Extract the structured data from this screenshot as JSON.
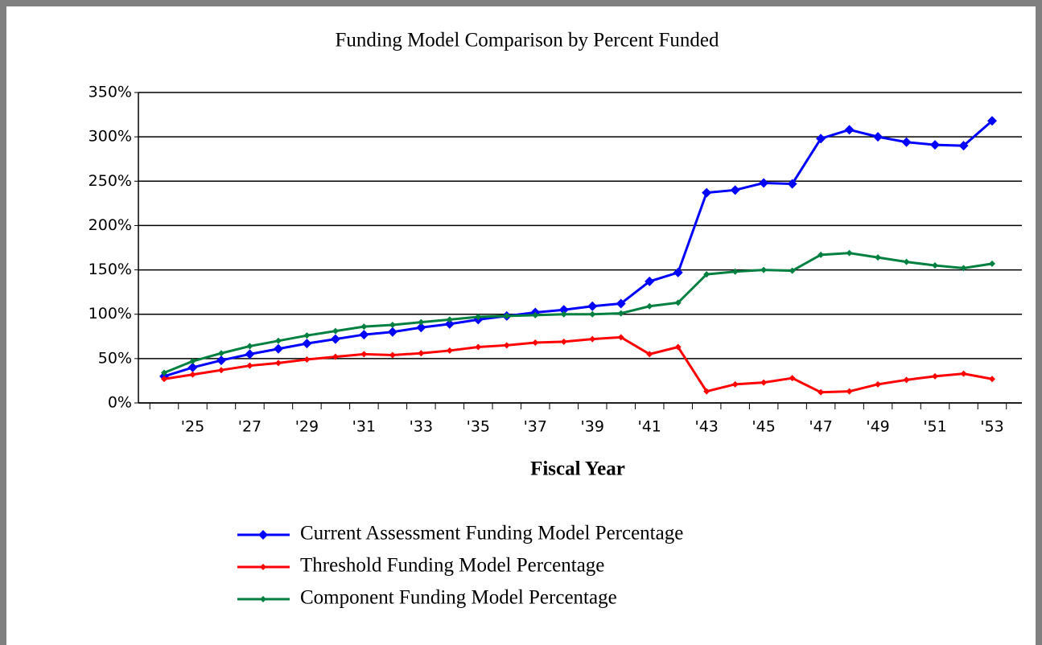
{
  "chart_data": {
    "type": "line",
    "title": "Funding Model Comparison by Percent Funded",
    "xlabel": "Fiscal Year",
    "categories": [
      null,
      "'25",
      null,
      "'27",
      null,
      "'29",
      null,
      "'31",
      null,
      "'33",
      null,
      "'35",
      null,
      "'37",
      null,
      "'39",
      null,
      "'41",
      null,
      "'43",
      null,
      "'45",
      null,
      "'47",
      null,
      "'49",
      null,
      "'51",
      null,
      "'53"
    ],
    "series": [
      {
        "name": "Current Assessment Funding Model Percentage",
        "color": "#0000ff",
        "values": [
          30,
          40,
          48,
          55,
          61,
          67,
          72,
          77,
          80,
          85,
          89,
          94,
          98,
          102,
          105,
          109,
          112,
          137,
          147,
          237,
          240,
          248,
          247,
          298,
          308,
          300,
          294,
          291,
          290,
          318
        ]
      },
      {
        "name": "Threshold Funding Model Percentage",
        "color": "#ff0000",
        "values": [
          27,
          32,
          37,
          42,
          45,
          49,
          52,
          55,
          54,
          56,
          59,
          63,
          65,
          68,
          69,
          72,
          74,
          55,
          63,
          13,
          21,
          23,
          28,
          12,
          13,
          21,
          26,
          30,
          33,
          27
        ]
      },
      {
        "name": "Component Funding Model Percentage",
        "color": "#008040",
        "values": [
          34,
          47,
          56,
          64,
          70,
          76,
          81,
          86,
          88,
          91,
          94,
          97,
          98,
          99,
          100,
          100,
          101,
          109,
          113,
          145,
          148,
          150,
          149,
          167,
          169,
          164,
          159,
          155,
          152,
          157
        ]
      }
    ],
    "ylim": [
      0,
      350
    ],
    "yticks": [
      {
        "value": 0,
        "label": "0%"
      },
      {
        "value": 50,
        "label": "50%"
      },
      {
        "value": 100,
        "label": "100%"
      },
      {
        "value": 150,
        "label": "150%"
      },
      {
        "value": 200,
        "label": "200%"
      },
      {
        "value": 250,
        "label": "250%"
      },
      {
        "value": 300,
        "label": "300%"
      },
      {
        "value": 350,
        "label": "350%"
      }
    ],
    "grid": true
  }
}
